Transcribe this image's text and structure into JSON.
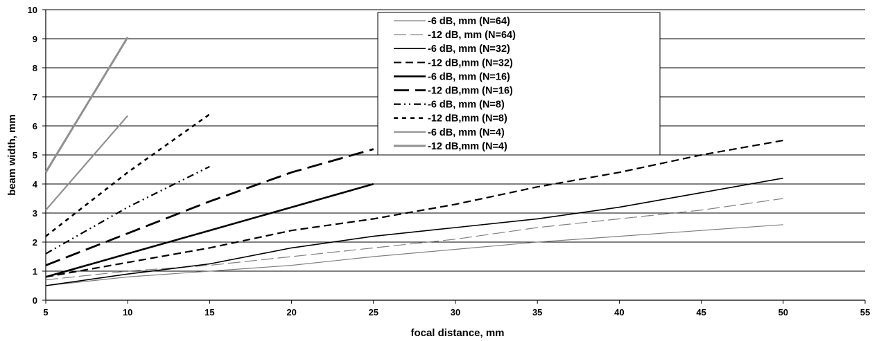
{
  "chart_data": {
    "type": "line",
    "title": "",
    "xlabel": "focal distance, mm",
    "ylabel": "beam width, mm",
    "xlim": [
      5,
      55
    ],
    "ylim": [
      0,
      10
    ],
    "xticks": [
      5,
      10,
      15,
      20,
      25,
      30,
      35,
      40,
      45,
      50,
      55
    ],
    "yticks": [
      0,
      1,
      2,
      3,
      4,
      5,
      6,
      7,
      8,
      9,
      10
    ],
    "grid": "horizontal",
    "legend_position": "top-center",
    "series": [
      {
        "name": "-6 dB, mm (N=64)",
        "color": "#808080",
        "x": [
          5,
          10,
          15,
          20,
          25,
          30,
          35,
          40,
          45,
          50
        ],
        "y": [
          0.5,
          0.8,
          1.0,
          1.2,
          1.5,
          1.75,
          2.0,
          2.2,
          2.4,
          2.6
        ]
      },
      {
        "name": "-12 dB, mm (N=64)",
        "color": "#808080",
        "x": [
          5,
          10,
          15,
          20,
          25,
          30,
          35,
          40,
          45,
          50
        ],
        "y": [
          0.7,
          1.0,
          1.2,
          1.5,
          1.8,
          2.1,
          2.5,
          2.8,
          3.1,
          3.5
        ]
      },
      {
        "name": "-6 dB, mm (N=32)",
        "color": "#000000",
        "x": [
          5,
          10,
          15,
          20,
          25,
          30,
          35,
          40,
          45,
          50
        ],
        "y": [
          0.5,
          0.9,
          1.25,
          1.8,
          2.2,
          2.5,
          2.8,
          3.2,
          3.7,
          4.2
        ]
      },
      {
        "name": "-12 dB,mm (N=32)",
        "color": "#000000",
        "x": [
          5,
          10,
          15,
          20,
          25,
          30,
          35,
          40,
          45,
          50
        ],
        "y": [
          0.8,
          1.3,
          1.8,
          2.4,
          2.8,
          3.3,
          3.9,
          4.4,
          5.0,
          5.5
        ]
      },
      {
        "name": "-6 dB, mm (N=16)",
        "color": "#000000",
        "x": [
          5,
          10,
          15,
          20,
          25
        ],
        "y": [
          0.8,
          1.6,
          2.4,
          3.2,
          4.0
        ]
      },
      {
        "name": "-12 dB,mm (N=16)",
        "color": "#000000",
        "x": [
          5,
          10,
          15,
          20,
          25
        ],
        "y": [
          1.2,
          2.3,
          3.4,
          4.4,
          5.2
        ]
      },
      {
        "name": "-6 dB, mm (N=8)",
        "color": "#000000",
        "x": [
          5,
          10,
          15
        ],
        "y": [
          1.6,
          3.2,
          4.6
        ]
      },
      {
        "name": "-12 dB,mm (N=8)",
        "color": "#000000",
        "x": [
          5,
          10,
          15
        ],
        "y": [
          2.2,
          4.4,
          6.4
        ]
      },
      {
        "name": "-6 dB, mm (N=4)",
        "color": "#909090",
        "x": [
          5,
          10
        ],
        "y": [
          3.1,
          6.35
        ]
      },
      {
        "name": "-12 dB,mm (N=4)",
        "color": "#909090",
        "x": [
          5,
          10
        ],
        "y": [
          4.4,
          9.05
        ]
      }
    ]
  }
}
